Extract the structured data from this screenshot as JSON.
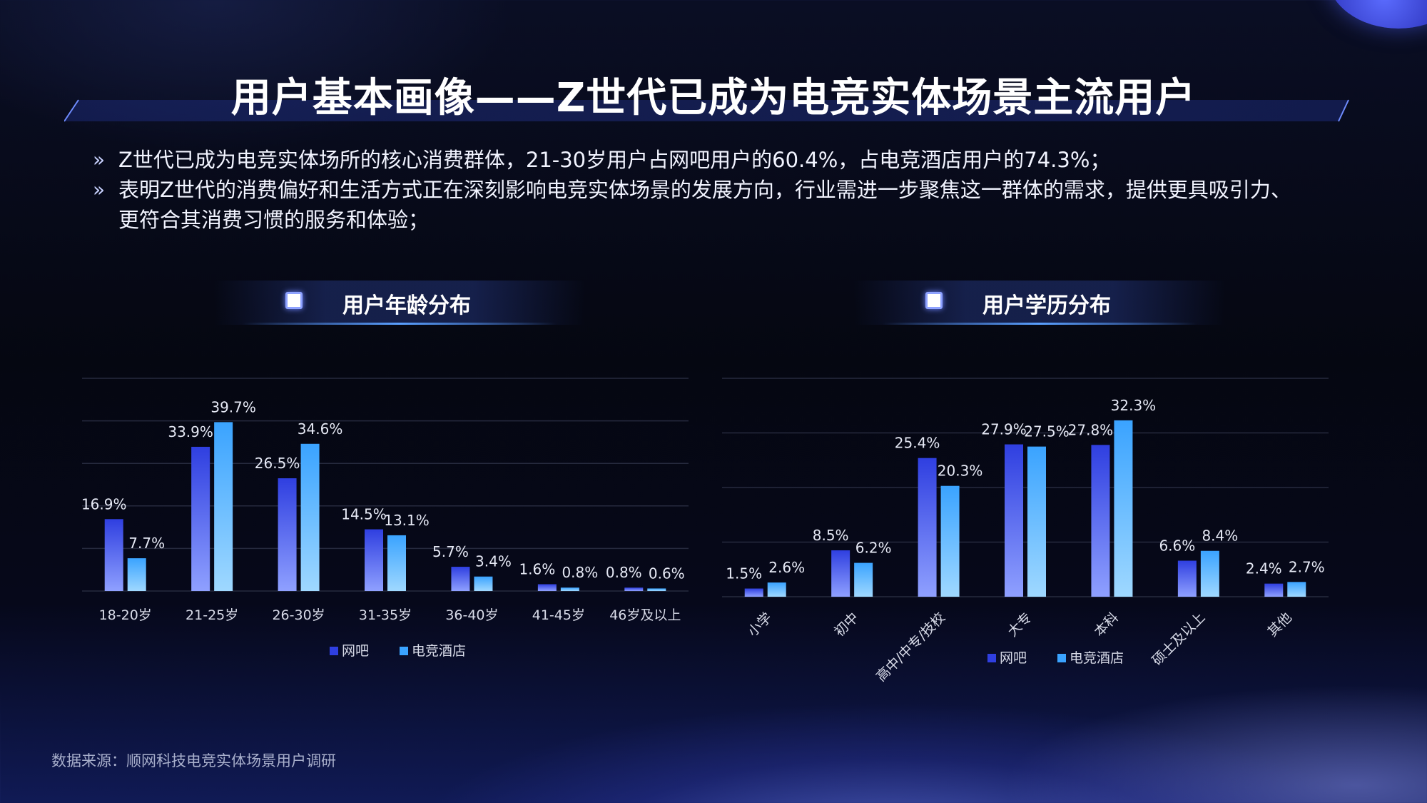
{
  "title": "用户基本画像——Z世代已成为电竞实体场景主流用户",
  "bullets": [
    "Z世代已成为电竞实体场所的核心消费群体，21-30岁用户占网吧用户的60.4%，占电竞酒店用户的74.3%；",
    "表明Z世代的消费偏好和生活方式正在深刻影响电竞实体场景的发展方向，行业需进一步聚焦这一群体的需求，提供更具吸引力、",
    "更符合其消费习惯的服务和体验；"
  ],
  "bullet_mark": "»",
  "source": "数据来源：顺网科技电竞实体场景用户调研",
  "colors": {
    "netcafe_top": "#2f3fe0",
    "netcafe_bottom": "#8fa0ff",
    "hotel_top": "#3aa3ff",
    "hotel_bottom": "#9fd8ff"
  },
  "chart_data": [
    {
      "type": "bar",
      "title": "用户年龄分布",
      "categories": [
        "18-20岁",
        "21-25岁",
        "26-30岁",
        "31-35岁",
        "36-40岁",
        "41-45岁",
        "46岁及以上"
      ],
      "series": [
        {
          "name": "网吧",
          "values": [
            16.9,
            33.9,
            26.5,
            14.5,
            5.7,
            1.6,
            0.8
          ],
          "labels": [
            "16.9%",
            "33.9%",
            "26.5%",
            "14.5%",
            "5.7%",
            "1.6%",
            "0.8%"
          ]
        },
        {
          "name": "电竞酒店",
          "values": [
            7.7,
            39.7,
            34.6,
            13.1,
            3.4,
            0.8,
            0.6
          ],
          "labels": [
            "7.7%",
            "39.7%",
            "34.6%",
            "13.1%",
            "3.4%",
            "0.8%",
            "0.6%"
          ]
        }
      ],
      "ylim": [
        0,
        50
      ],
      "grid": true,
      "legend": "bottom-center"
    },
    {
      "type": "bar",
      "title": "用户学历分布",
      "categories": [
        "小学",
        "初中",
        "高中/中专/技校",
        "大专",
        "本科",
        "硕士及以上",
        "其他"
      ],
      "series": [
        {
          "name": "网吧",
          "values": [
            1.5,
            8.5,
            25.4,
            27.9,
            27.8,
            6.6,
            2.4
          ],
          "labels": [
            "1.5%",
            "8.5%",
            "25.4%",
            "27.9%",
            "27.8%",
            "6.6%",
            "2.4%"
          ]
        },
        {
          "name": "电竞酒店",
          "values": [
            2.6,
            6.2,
            20.3,
            27.5,
            32.3,
            8.4,
            2.7
          ],
          "labels": [
            "2.6%",
            "6.2%",
            "20.3%",
            "27.5%",
            "32.3%",
            "8.4%",
            "2.7%"
          ]
        }
      ],
      "ylim": [
        0,
        40
      ],
      "grid": true,
      "legend": "bottom-center"
    }
  ]
}
